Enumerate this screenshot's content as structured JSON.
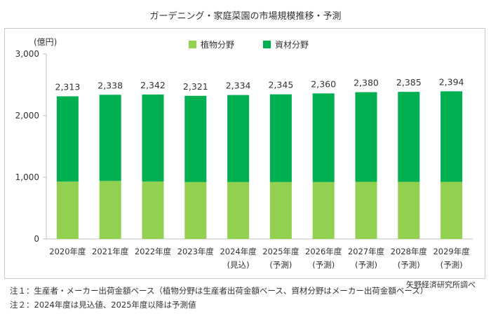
{
  "title": "ガーデニング・家庭菜園の市場規模推移・予測",
  "colors": {
    "plant": "#92d050",
    "material": "#00b050"
  },
  "chart_data": {
    "type": "bar",
    "stacked": true,
    "unit_label": "(億円)",
    "categories": [
      "2020年度",
      "2021年度",
      "2022年度",
      "2023年度",
      "2024年度",
      "2025年度",
      "2026年度",
      "2027年度",
      "2028年度",
      "2029年度"
    ],
    "category_notes": [
      "",
      "",
      "",
      "",
      "(見込)",
      "(予測)",
      "(予測)",
      "(予測)",
      "(予測)",
      "(予測)"
    ],
    "series": [
      {
        "name": "植物分野",
        "values": [
          930,
          940,
          930,
          922,
          922,
          922,
          922,
          926,
          926,
          926
        ]
      },
      {
        "name": "資材分野",
        "values": [
          1383,
          1398,
          1412,
          1399,
          1412,
          1423,
          1438,
          1454,
          1459,
          1468
        ]
      }
    ],
    "totals": [
      2313,
      2338,
      2342,
      2321,
      2334,
      2345,
      2360,
      2380,
      2385,
      2394
    ],
    "total_labels": [
      "2,313",
      "2,338",
      "2,342",
      "2,321",
      "2,334",
      "2,345",
      "2,360",
      "2,380",
      "2,385",
      "2,394"
    ],
    "y_ticks": [
      0,
      1000,
      2000,
      3000
    ],
    "y_tick_labels": [
      "0",
      "1,000",
      "2,000",
      "3,000"
    ],
    "ylim": [
      0,
      3000
    ],
    "legend_position": "top-center",
    "grid": false
  },
  "source": "矢野経済研究所調べ",
  "notes": [
    "注１：生産者・メーカー出荷金額ベース（植物分野は生産者出荷金額ベース、資材分野はメーカー出荷金額ベース）",
    "注２：2024年度は見込値、2025年度以降は予測値"
  ]
}
